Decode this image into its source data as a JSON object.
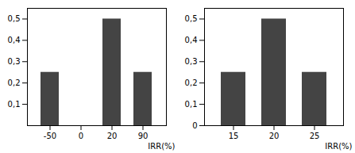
{
  "chart_data": [
    {
      "type": "bar",
      "categories": [
        "-50",
        "0",
        "20",
        "90"
      ],
      "values": [
        0.25,
        null,
        0.5,
        0.25
      ],
      "x_label": "IRR(%)",
      "color": "#444444",
      "ylim": [
        0,
        0.55
      ],
      "yticks": [
        {
          "value": 0.1,
          "label": "0,1"
        },
        {
          "value": 0.2,
          "label": "0,2"
        },
        {
          "value": 0.3,
          "label": "0,3"
        },
        {
          "value": 0.4,
          "label": "0,4"
        },
        {
          "value": 0.5,
          "label": "0,5"
        }
      ],
      "grid": false
    },
    {
      "type": "bar",
      "categories": [
        "15",
        "20",
        "25"
      ],
      "values": [
        0.25,
        0.5,
        0.25
      ],
      "x_label": "IRR(%)",
      "color": "#444444",
      "ylim": [
        0,
        0.55
      ],
      "yticks": [
        0,
        {
          "value": 0.1,
          "label": "0,1"
        },
        {
          "value": 0.2,
          "label": "0,2"
        },
        {
          "value": 0.3,
          "label": "0,3"
        },
        {
          "value": 0.4,
          "label": "0,4"
        },
        {
          "value": 0.5,
          "label": "0,5"
        }
      ],
      "grid": false
    }
  ]
}
